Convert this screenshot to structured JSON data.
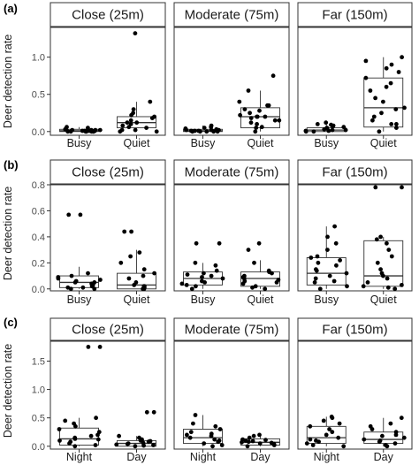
{
  "chart_data": [
    {
      "tag": "(a)",
      "type": "boxplot-jitter",
      "ylabel": "Deer detection rate",
      "ylim": [
        -0.05,
        1.4
      ],
      "yticks": [
        "0.0",
        "0.5",
        "1.0"
      ],
      "ytick_values": [
        0,
        0.5,
        1.0
      ],
      "categories": [
        "Busy",
        "Quiet"
      ],
      "facets": [
        {
          "label": "Close (25m)",
          "groups": [
            {
              "category": "Busy",
              "box": {
                "min": 0,
                "q1": 0,
                "median": 0.01,
                "q3": 0.03,
                "max": 0.06
              },
              "points": [
                0,
                0,
                0.01,
                0.02,
                0.01,
                0,
                0.03,
                0.02,
                0.05,
                0,
                0.01,
                0.02,
                0,
                0.04,
                0.01,
                0,
                0.06,
                0.02,
                0.01,
                0
              ]
            },
            {
              "category": "Quiet",
              "box": {
                "min": 0,
                "q1": 0.05,
                "median": 0.12,
                "q3": 0.2,
                "max": 0.4
              },
              "points": [
                0,
                0.02,
                0.05,
                0.1,
                0.12,
                0.15,
                0.2,
                0.18,
                0.25,
                0.3,
                0.4,
                0.08,
                0.02,
                0.06,
                0.22,
                0.12,
                0,
                1.32
              ]
            }
          ]
        },
        {
          "label": "Moderate (75m)",
          "groups": [
            {
              "category": "Busy",
              "box": {
                "min": 0,
                "q1": 0,
                "median": 0.01,
                "q3": 0.03,
                "max": 0.08
              },
              "points": [
                0,
                0.01,
                0,
                0.02,
                0.03,
                0.01,
                0.05,
                0,
                0.08,
                0.02,
                0,
                0.04,
                0.06,
                0.01,
                0.02,
                0
              ]
            },
            {
              "category": "Quiet",
              "box": {
                "min": 0,
                "q1": 0.05,
                "median": 0.2,
                "q3": 0.32,
                "max": 0.55
              },
              "points": [
                0,
                0.05,
                0.1,
                0.15,
                0.2,
                0.22,
                0.25,
                0.3,
                0.35,
                0.4,
                0.18,
                0.12,
                0.2,
                0.55,
                0.75,
                0.28,
                0.06,
                0.15,
                0.2,
                0.35
              ]
            }
          ]
        },
        {
          "label": "Far (150m)",
          "groups": [
            {
              "category": "Busy",
              "box": {
                "min": 0,
                "q1": 0,
                "median": 0.02,
                "q3": 0.05,
                "max": 0.1
              },
              "points": [
                0,
                0.01,
                0.03,
                0.05,
                0.08,
                0.1,
                0.12,
                0.02,
                0,
                0.04,
                0.06,
                0.09,
                0.01,
                0.02,
                0.07
              ]
            },
            {
              "category": "Quiet",
              "box": {
                "min": 0,
                "q1": 0.06,
                "median": 0.32,
                "q3": 0.72,
                "max": 1.0
              },
              "points": [
                0,
                0.05,
                0.1,
                0.2,
                0.3,
                0.32,
                0.4,
                0.55,
                0.6,
                0.65,
                0.8,
                0.85,
                0.9,
                0.95,
                1.0,
                0.72,
                0.15,
                0.25,
                0.1,
                0.45
              ]
            }
          ]
        }
      ]
    },
    {
      "tag": "(b)",
      "type": "boxplot-jitter",
      "ylabel": "Deer detection rate",
      "ylim": [
        -0.015,
        0.8
      ],
      "yticks": [
        "0.0",
        "0.2",
        "0.4",
        "0.6",
        "0.8"
      ],
      "ytick_values": [
        0,
        0.2,
        0.4,
        0.6,
        0.8
      ],
      "categories": [
        "Busy",
        "Quiet"
      ],
      "facets": [
        {
          "label": "Close (25m)",
          "groups": [
            {
              "category": "Busy",
              "box": {
                "min": 0,
                "q1": 0.01,
                "median": 0.05,
                "q3": 0.1,
                "max": 0.17
              },
              "points": [
                0,
                0.01,
                0.02,
                0.05,
                0.06,
                0.08,
                0.1,
                0.12,
                0.03,
                0.04,
                0.07,
                0.01,
                0.05,
                0,
                0.09,
                0.57,
                0.57
              ]
            },
            {
              "category": "Quiet",
              "box": {
                "min": 0,
                "q1": 0,
                "median": 0.03,
                "q3": 0.12,
                "max": 0.3
              },
              "points": [
                0,
                0.01,
                0.02,
                0.05,
                0.1,
                0.12,
                0.15,
                0.2,
                0.28,
                0.44,
                0,
                0.03,
                0.08,
                0.02,
                0.25,
                0.44
              ]
            }
          ]
        },
        {
          "label": "Moderate (75m)",
          "groups": [
            {
              "category": "Busy",
              "box": {
                "min": 0,
                "q1": 0.03,
                "median": 0.08,
                "q3": 0.13,
                "max": 0.2
              },
              "points": [
                0,
                0.02,
                0.03,
                0.05,
                0.08,
                0.1,
                0.12,
                0.14,
                0.18,
                0.2,
                0.06,
                0.09,
                0.11,
                0.35,
                0.35,
                0.04
              ]
            },
            {
              "category": "Quiet",
              "box": {
                "min": 0,
                "q1": 0.02,
                "median": 0.08,
                "q3": 0.13,
                "max": 0.22
              },
              "points": [
                0,
                0.02,
                0.04,
                0.06,
                0.08,
                0.1,
                0.12,
                0.13,
                0.14,
                0.2,
                0.3,
                0.35,
                0.07,
                0.01,
                0.09,
                0.05
              ]
            }
          ]
        },
        {
          "label": "Far (150m)",
          "groups": [
            {
              "category": "Busy",
              "box": {
                "min": 0,
                "q1": 0.03,
                "median": 0.12,
                "q3": 0.24,
                "max": 0.48
              },
              "points": [
                0,
                0.02,
                0.05,
                0.08,
                0.1,
                0.12,
                0.15,
                0.18,
                0.2,
                0.22,
                0.25,
                0.3,
                0.35,
                0.4,
                0.48,
                0.06,
                0.14,
                0.24
              ]
            },
            {
              "category": "Quiet",
              "box": {
                "min": 0,
                "q1": 0.02,
                "median": 0.1,
                "q3": 0.37,
                "max": 0.4
              },
              "points": [
                0,
                0.02,
                0.05,
                0.1,
                0.12,
                0.2,
                0.25,
                0.3,
                0.35,
                0.38,
                0.4,
                0.15,
                0.08,
                0.78,
                0.78,
                0.03,
                0.01
              ]
            }
          ]
        }
      ]
    },
    {
      "tag": "(c)",
      "type": "boxplot-jitter",
      "ylabel": "Deer detection rate",
      "ylim": [
        -0.05,
        1.85
      ],
      "yticks": [
        "0.0",
        "0.5",
        "1.0",
        "1.5"
      ],
      "ytick_values": [
        0,
        0.5,
        1.0,
        1.5
      ],
      "categories": [
        "Night",
        "Day"
      ],
      "facets": [
        {
          "label": "Close (25m)",
          "groups": [
            {
              "category": "Night",
              "box": {
                "min": 0,
                "q1": 0.02,
                "median": 0.13,
                "q3": 0.32,
                "max": 0.5
              },
              "points": [
                0,
                0.02,
                0.05,
                0.1,
                0.13,
                0.15,
                0.2,
                0.25,
                0.3,
                0.35,
                0.4,
                0.45,
                0.5,
                0.08,
                0.12,
                1.75,
                1.75,
                0.18
              ]
            },
            {
              "category": "Day",
              "box": {
                "min": 0,
                "q1": 0,
                "median": 0.05,
                "q3": 0.1,
                "max": 0.18
              },
              "points": [
                0,
                0.01,
                0.02,
                0.05,
                0.08,
                0.1,
                0.12,
                0.15,
                0.18,
                0.6,
                0.6,
                0.03,
                0.06,
                0.04,
                0.09
              ]
            }
          ]
        },
        {
          "label": "Moderate (75m)",
          "groups": [
            {
              "category": "Night",
              "box": {
                "min": 0,
                "q1": 0.05,
                "median": 0.15,
                "q3": 0.3,
                "max": 0.55
              },
              "points": [
                0,
                0.02,
                0.05,
                0.1,
                0.15,
                0.2,
                0.25,
                0.3,
                0.35,
                0.4,
                0.55,
                0.08,
                0.12,
                0.18,
                0.22
              ]
            },
            {
              "category": "Day",
              "box": {
                "min": 0,
                "q1": 0.02,
                "median": 0.07,
                "q3": 0.13,
                "max": 0.2
              },
              "points": [
                0,
                0.02,
                0.04,
                0.06,
                0.08,
                0.1,
                0.12,
                0.15,
                0.18,
                0.2,
                0.05,
                0.07,
                0.09,
                0.11
              ]
            }
          ]
        },
        {
          "label": "Far (150m)",
          "groups": [
            {
              "category": "Night",
              "box": {
                "min": 0,
                "q1": 0.05,
                "median": 0.15,
                "q3": 0.35,
                "max": 0.52
              },
              "points": [
                0,
                0.02,
                0.05,
                0.1,
                0.15,
                0.2,
                0.25,
                0.3,
                0.35,
                0.4,
                0.45,
                0.5,
                0.52,
                0.08,
                0.12
              ]
            },
            {
              "category": "Day",
              "box": {
                "min": 0,
                "q1": 0.05,
                "median": 0.12,
                "q3": 0.25,
                "max": 0.5
              },
              "points": [
                0,
                0.02,
                0.05,
                0.1,
                0.12,
                0.15,
                0.2,
                0.25,
                0.3,
                0.35,
                0.4,
                0.5,
                0.08,
                0.18
              ]
            }
          ]
        }
      ]
    }
  ]
}
